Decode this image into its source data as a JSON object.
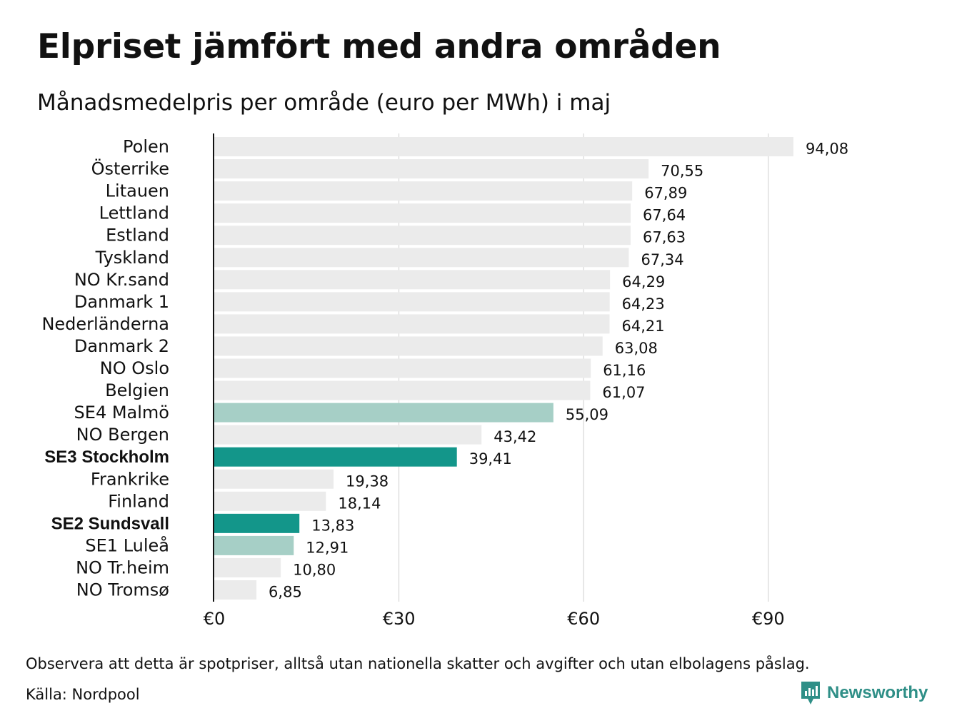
{
  "chart_data": {
    "type": "bar",
    "orientation": "horizontal",
    "title": "Elpriset jämfört med andra områden",
    "subtitle": "Månadsmedelpris per område (euro per MWh) i maj",
    "categories": [
      "Polen",
      "Österrike",
      "Litauen",
      "Lettland",
      "Estland",
      "Tyskland",
      "NO Kr.sand",
      "Danmark  1",
      "Nederländerna",
      "Danmark  2",
      "NO Oslo",
      "Belgien",
      "SE4  Malmö",
      "NO Bergen",
      "SE3 Stockholm",
      "Frankrike",
      "Finland",
      "SE2 Sundsvall",
      "SE1  Luleå",
      "NO Tr.heim",
      "NO Tromsø"
    ],
    "values": [
      94.08,
      70.55,
      67.89,
      67.64,
      67.63,
      67.34,
      64.29,
      64.23,
      64.21,
      63.08,
      61.16,
      61.07,
      55.09,
      43.42,
      39.41,
      19.38,
      18.14,
      13.83,
      12.91,
      10.8,
      6.85
    ],
    "value_labels": [
      "94,08",
      "70,55",
      "67,89",
      "67,64",
      "67,63",
      "67,34",
      "64,29",
      "64,23",
      "64,21",
      "63,08",
      "61,16",
      "61,07",
      "55,09",
      "43,42",
      "39,41",
      "19,38",
      "18,14",
      "13,83",
      "12,91",
      "10,80",
      "6,85"
    ],
    "bar_colors": [
      "#ebebeb",
      "#ebebeb",
      "#ebebeb",
      "#ebebeb",
      "#ebebeb",
      "#ebebeb",
      "#ebebeb",
      "#ebebeb",
      "#ebebeb",
      "#ebebeb",
      "#ebebeb",
      "#ebebeb",
      "#a6cfc6",
      "#ebebeb",
      "#13968a",
      "#ebebeb",
      "#ebebeb",
      "#13968a",
      "#a6cfc6",
      "#ebebeb",
      "#ebebeb"
    ],
    "bold_categories": [
      "SE3 Stockholm",
      "SE2 Sundsvall"
    ],
    "xlim": [
      0,
      100
    ],
    "xticks": [
      0,
      30,
      60,
      90
    ],
    "xtick_labels": [
      "€0",
      "€30",
      "€60",
      "€90"
    ],
    "grid": "vertical",
    "legend": "none"
  },
  "footer": {
    "note": "Observera att detta är spotpriser, alltså utan nationella skatter och avgifter och utan elbolagens påslag.",
    "source": "Källa: Nordpool"
  },
  "logo": {
    "text": "Newsworthy",
    "icon": "newsworthy-chart-bubble-icon",
    "color": "#2f8f87"
  }
}
